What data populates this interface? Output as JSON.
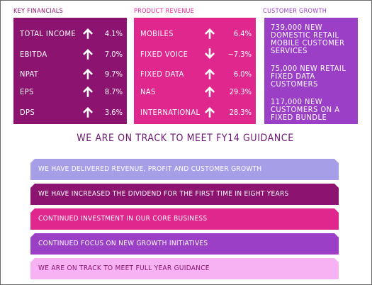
{
  "colors": {
    "key_financials": "#8c136f",
    "product_revenue": "#e0278e",
    "customer_growth": "#9a3fc6",
    "title": "#6e1673"
  },
  "key_financials": {
    "heading": "KEY FINANCIALS",
    "rows": [
      {
        "label": "TOTAL INCOME",
        "direction": "up",
        "value": "4.1%"
      },
      {
        "label": "EBITDA",
        "direction": "up",
        "value": "7.0%"
      },
      {
        "label": "NPAT",
        "direction": "up",
        "value": "9.7%"
      },
      {
        "label": "EPS",
        "direction": "up",
        "value": "8.7%"
      },
      {
        "label": "DPS",
        "direction": "up",
        "value": "3.6%"
      }
    ]
  },
  "product_revenue": {
    "heading": "PRODUCT REVENUE",
    "rows": [
      {
        "label": "MOBILES",
        "direction": "up",
        "value": "6.4%"
      },
      {
        "label": "FIXED VOICE",
        "direction": "down",
        "value": "−7.3%"
      },
      {
        "label": "FIXED DATA",
        "direction": "up",
        "value": "6.0%"
      },
      {
        "label": "NAS",
        "direction": "up",
        "value": "29.3%"
      },
      {
        "label": "INTERNATIONAL",
        "direction": "up",
        "value": "28.3%"
      }
    ]
  },
  "customer_growth": {
    "heading": "CUSTOMER GROWTH",
    "items": [
      "739,000 NEW DOMESTIC RETAIL MOBILE CUSTOMER SERVICES",
      "75,000 NEW RETAIL FIXED DATA CUSTOMERS",
      "117,000 NEW CUSTOMERS ON A FIXED BUNDLE"
    ]
  },
  "guidance_title": "WE ARE ON TRACK TO MEET FY14 GUIDANCE",
  "bars": [
    {
      "text": "WE HAVE DELIVERED REVENUE, PROFIT AND CUSTOMER GROWTH",
      "bg": "#a79ee8",
      "fg": "#ffffff"
    },
    {
      "text": "WE HAVE INCREASED THE DIVIDEND FOR THE FIRST TIME IN EIGHT YEARS",
      "bg": "#8c136f",
      "fg": "#ffffff"
    },
    {
      "text": "CONTINUED INVESTMENT IN OUR CORE BUSINESS",
      "bg": "#e0278e",
      "fg": "#ffffff"
    },
    {
      "text": "CONTINUED FOCUS ON NEW GROWTH INITIATIVES",
      "bg": "#9a3fc6",
      "fg": "#ffffff"
    },
    {
      "text": "WE ARE ON TRACK TO MEET FULL YEAR GUIDANCE",
      "bg": "#f6b2f2",
      "fg": "#8c136f"
    }
  ]
}
